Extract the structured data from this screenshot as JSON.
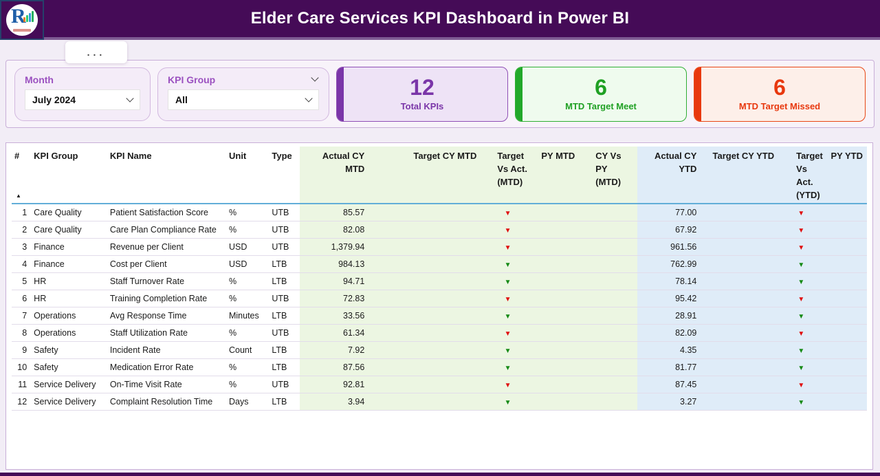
{
  "header": {
    "title": "Elder Care Services KPI Dashboard in Power BI"
  },
  "logo": {
    "letter": "R"
  },
  "icons": {
    "more_options": "...",
    "sort_ascending": "▲",
    "down_arrow": "▼",
    "chevron_down": "chevron-down"
  },
  "filters": {
    "month": {
      "label": "Month",
      "value": "July 2024"
    },
    "kpi_group": {
      "label": "KPI Group",
      "value": "All"
    }
  },
  "cards": [
    {
      "value": "12",
      "label": "Total KPIs",
      "accent": "#7a35a8"
    },
    {
      "value": "6",
      "label": "MTD Target Meet",
      "accent": "#22a82a"
    },
    {
      "value": "6",
      "label": "MTD Target Missed",
      "accent": "#e8380e"
    }
  ],
  "colors": {
    "header_bg": "#450b57",
    "mtd_section_bg": "#ecf6e2",
    "ytd_section_bg": "#dfecf8",
    "arrow_red": "#e01010",
    "arrow_green": "#168a16"
  },
  "table": {
    "columns": [
      "#",
      "KPI Group",
      "KPI Name",
      "Unit",
      "Type",
      "Actual CY MTD",
      "Target CY MTD",
      "Target Vs Act. (MTD)",
      "PY MTD",
      "CY Vs PY (MTD)",
      "Actual CY YTD",
      "Target CY YTD",
      "Target Vs Act. (YTD)",
      "PY YTD"
    ],
    "rows": [
      {
        "num": "1",
        "group": "Care Quality",
        "name": "Patient Satisfaction Score",
        "unit": "%",
        "type": "UTB",
        "actual_mtd": "85.57",
        "target_mtd": "",
        "tva_mtd": "red",
        "py_mtd": "",
        "cy_py_mtd": "",
        "actual_ytd": "77.00",
        "target_ytd": "",
        "tva_ytd": "red",
        "py_ytd": ""
      },
      {
        "num": "2",
        "group": "Care Quality",
        "name": "Care Plan Compliance Rate",
        "unit": "%",
        "type": "UTB",
        "actual_mtd": "82.08",
        "target_mtd": "",
        "tva_mtd": "red",
        "py_mtd": "",
        "cy_py_mtd": "",
        "actual_ytd": "67.92",
        "target_ytd": "",
        "tva_ytd": "red",
        "py_ytd": ""
      },
      {
        "num": "3",
        "group": "Finance",
        "name": "Revenue per Client",
        "unit": "USD",
        "type": "UTB",
        "actual_mtd": "1,379.94",
        "target_mtd": "",
        "tva_mtd": "red",
        "py_mtd": "",
        "cy_py_mtd": "",
        "actual_ytd": "961.56",
        "target_ytd": "",
        "tva_ytd": "red",
        "py_ytd": ""
      },
      {
        "num": "4",
        "group": "Finance",
        "name": "Cost per Client",
        "unit": "USD",
        "type": "LTB",
        "actual_mtd": "984.13",
        "target_mtd": "",
        "tva_mtd": "green",
        "py_mtd": "",
        "cy_py_mtd": "",
        "actual_ytd": "762.99",
        "target_ytd": "",
        "tva_ytd": "green",
        "py_ytd": ""
      },
      {
        "num": "5",
        "group": "HR",
        "name": "Staff Turnover Rate",
        "unit": "%",
        "type": "LTB",
        "actual_mtd": "94.71",
        "target_mtd": "",
        "tva_mtd": "green",
        "py_mtd": "",
        "cy_py_mtd": "",
        "actual_ytd": "78.14",
        "target_ytd": "",
        "tva_ytd": "green",
        "py_ytd": ""
      },
      {
        "num": "6",
        "group": "HR",
        "name": "Training Completion Rate",
        "unit": "%",
        "type": "UTB",
        "actual_mtd": "72.83",
        "target_mtd": "",
        "tva_mtd": "red",
        "py_mtd": "",
        "cy_py_mtd": "",
        "actual_ytd": "95.42",
        "target_ytd": "",
        "tva_ytd": "red",
        "py_ytd": ""
      },
      {
        "num": "7",
        "group": "Operations",
        "name": "Avg Response Time",
        "unit": "Minutes",
        "type": "LTB",
        "actual_mtd": "33.56",
        "target_mtd": "",
        "tva_mtd": "green",
        "py_mtd": "",
        "cy_py_mtd": "",
        "actual_ytd": "28.91",
        "target_ytd": "",
        "tva_ytd": "green",
        "py_ytd": ""
      },
      {
        "num": "8",
        "group": "Operations",
        "name": "Staff Utilization Rate",
        "unit": "%",
        "type": "UTB",
        "actual_mtd": "61.34",
        "target_mtd": "",
        "tva_mtd": "red",
        "py_mtd": "",
        "cy_py_mtd": "",
        "actual_ytd": "82.09",
        "target_ytd": "",
        "tva_ytd": "red",
        "py_ytd": ""
      },
      {
        "num": "9",
        "group": "Safety",
        "name": "Incident Rate",
        "unit": "Count",
        "type": "LTB",
        "actual_mtd": "7.92",
        "target_mtd": "",
        "tva_mtd": "green",
        "py_mtd": "",
        "cy_py_mtd": "",
        "actual_ytd": "4.35",
        "target_ytd": "",
        "tva_ytd": "green",
        "py_ytd": ""
      },
      {
        "num": "10",
        "group": "Safety",
        "name": "Medication Error Rate",
        "unit": "%",
        "type": "LTB",
        "actual_mtd": "87.56",
        "target_mtd": "",
        "tva_mtd": "green",
        "py_mtd": "",
        "cy_py_mtd": "",
        "actual_ytd": "81.77",
        "target_ytd": "",
        "tva_ytd": "green",
        "py_ytd": ""
      },
      {
        "num": "11",
        "group": "Service Delivery",
        "name": "On-Time Visit Rate",
        "unit": "%",
        "type": "UTB",
        "actual_mtd": "92.81",
        "target_mtd": "",
        "tva_mtd": "red",
        "py_mtd": "",
        "cy_py_mtd": "",
        "actual_ytd": "87.45",
        "target_ytd": "",
        "tva_ytd": "red",
        "py_ytd": ""
      },
      {
        "num": "12",
        "group": "Service Delivery",
        "name": "Complaint Resolution Time",
        "unit": "Days",
        "type": "LTB",
        "actual_mtd": "3.94",
        "target_mtd": "",
        "tva_mtd": "green",
        "py_mtd": "",
        "cy_py_mtd": "",
        "actual_ytd": "3.27",
        "target_ytd": "",
        "tva_ytd": "green",
        "py_ytd": ""
      }
    ]
  }
}
